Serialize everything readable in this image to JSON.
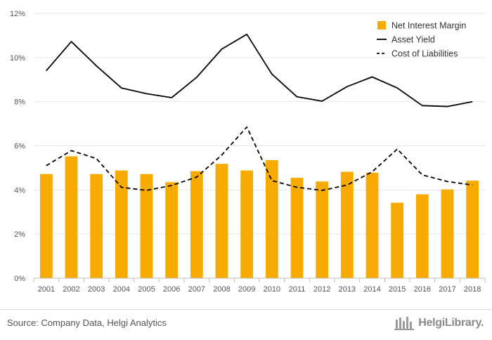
{
  "chart_data": {
    "type": "bar",
    "categories": [
      "2001",
      "2002",
      "2003",
      "2004",
      "2005",
      "2006",
      "2007",
      "2008",
      "2009",
      "2010",
      "2011",
      "2012",
      "2013",
      "2014",
      "2015",
      "2016",
      "2017",
      "2018"
    ],
    "series": [
      {
        "name": "Net Interest Margin",
        "type": "bar",
        "color": "#f7ab00",
        "values": [
          4.72,
          5.52,
          4.72,
          4.88,
          4.72,
          4.35,
          4.85,
          5.18,
          4.88,
          5.35,
          4.55,
          4.38,
          4.82,
          4.78,
          3.42,
          3.8,
          4.02,
          4.42
        ]
      },
      {
        "name": "Asset Yield",
        "type": "line",
        "dash": "solid",
        "color": "#000000",
        "values": [
          9.4,
          10.72,
          9.62,
          8.62,
          8.36,
          8.18,
          9.1,
          10.38,
          11.05,
          9.25,
          8.22,
          8.02,
          8.68,
          9.12,
          8.62,
          7.82,
          7.78,
          8.0
        ]
      },
      {
        "name": "Cost of Liabilities",
        "type": "line",
        "dash": "dashed",
        "color": "#000000",
        "values": [
          5.1,
          5.78,
          5.42,
          4.12,
          3.98,
          4.2,
          4.58,
          5.58,
          6.85,
          4.42,
          4.12,
          3.98,
          4.22,
          4.82,
          5.85,
          4.68,
          4.38,
          4.22
        ]
      }
    ],
    "y_ticks": [
      "0%",
      "2%",
      "4%",
      "6%",
      "8%",
      "10%",
      "12%"
    ],
    "ylim": [
      0,
      12
    ],
    "grid": true,
    "legend_position": "top-right"
  },
  "footer": {
    "source": "Source: Company Data, Helgi Analytics",
    "brand": "HelgiLibrary."
  }
}
